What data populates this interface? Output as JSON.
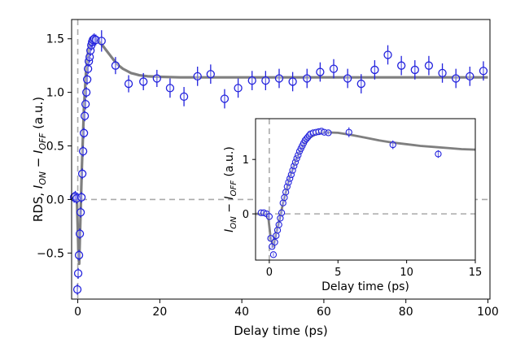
{
  "chart_data": [
    {
      "type": "scatter",
      "title": "",
      "xlabel": "Delay time (ps)",
      "ylabel": "RDS, I_ON − I_OFF (a.u.)",
      "ylabel_parts": {
        "main": "RDS, ",
        "i1": "I",
        "s1": "ON",
        "mid": " − ",
        "i2": "I",
        "s2": "OFF",
        "tail": " (a.u.)"
      },
      "xlim": [
        -1.5,
        100.5
      ],
      "ylim": [
        -0.93,
        1.68
      ],
      "xticks": [
        0,
        20,
        40,
        60,
        80,
        100
      ],
      "yticks": [
        -0.5,
        0.0,
        0.5,
        1.0,
        1.5
      ],
      "xtick_labels": [
        "0",
        "20",
        "40",
        "60",
        "80",
        "100"
      ],
      "ytick_labels": [
        "−0.5",
        "0.0",
        "0.5",
        "1.0",
        "1.5"
      ],
      "grid": false,
      "colors": {
        "points": "#2222dd",
        "fit": "#7f7f7f",
        "guides": "#aaaaaa"
      },
      "reference_lines": {
        "y": 0,
        "x": 0
      },
      "series": [
        {
          "kind": "points-with-errorbars",
          "x": [
            -0.9,
            -0.6,
            -0.3,
            -0.1,
            0.1,
            0.3,
            0.5,
            0.7,
            0.9,
            1.1,
            1.3,
            1.5,
            1.7,
            1.9,
            2.1,
            2.3,
            2.5,
            2.7,
            2.9,
            3.1,
            3.3,
            3.5,
            3.7,
            4.0,
            4.4,
            5.8,
            9.2,
            12.4,
            16,
            19.3,
            22.5,
            25.9,
            29.2,
            32.4,
            35.8,
            39.1,
            42.5,
            45.8,
            49.1,
            52.4,
            55.9,
            59.1,
            62.4,
            65.8,
            69.1,
            72.4,
            75.6,
            78.9,
            82.2,
            85.6,
            88.9,
            92.2,
            95.6,
            98.9
          ],
          "y": [
            0.02,
            0.03,
            0.01,
            -0.84,
            -0.69,
            -0.52,
            -0.32,
            -0.12,
            0.02,
            0.24,
            0.45,
            0.62,
            0.78,
            0.89,
            1.0,
            1.12,
            1.22,
            1.29,
            1.33,
            1.39,
            1.44,
            1.47,
            1.49,
            1.5,
            1.49,
            1.48,
            1.25,
            1.08,
            1.1,
            1.13,
            1.04,
            0.96,
            1.15,
            1.17,
            0.94,
            1.04,
            1.11,
            1.11,
            1.13,
            1.1,
            1.13,
            1.19,
            1.22,
            1.13,
            1.08,
            1.21,
            1.35,
            1.25,
            1.21,
            1.25,
            1.18,
            1.13,
            1.15,
            1.2
          ],
          "err": [
            0.05,
            0.05,
            0.05,
            0.05,
            0.05,
            0.05,
            0.05,
            0.05,
            0.05,
            0.05,
            0.05,
            0.05,
            0.05,
            0.05,
            0.05,
            0.05,
            0.05,
            0.05,
            0.05,
            0.05,
            0.05,
            0.05,
            0.05,
            0.05,
            0.05,
            0.1,
            0.08,
            0.08,
            0.08,
            0.08,
            0.09,
            0.09,
            0.09,
            0.09,
            0.09,
            0.09,
            0.09,
            0.09,
            0.09,
            0.09,
            0.09,
            0.09,
            0.09,
            0.09,
            0.09,
            0.09,
            0.09,
            0.09,
            0.09,
            0.09,
            0.09,
            0.09,
            0.09,
            0.09
          ]
        },
        {
          "kind": "fit-curve",
          "x": [
            -1.5,
            -0.2,
            0.2,
            0.35,
            0.6,
            1,
            1.5,
            2,
            2.5,
            3,
            3.5,
            4,
            5,
            6,
            7,
            8,
            9,
            10,
            11,
            12,
            13,
            14,
            15,
            17,
            20,
            25,
            30,
            40,
            60,
            80,
            100
          ],
          "y": [
            0,
            0,
            -0.55,
            -0.6,
            -0.25,
            0.3,
            0.85,
            1.18,
            1.37,
            1.46,
            1.5,
            1.5,
            1.48,
            1.44,
            1.39,
            1.34,
            1.29,
            1.25,
            1.22,
            1.2,
            1.18,
            1.17,
            1.16,
            1.15,
            1.145,
            1.14,
            1.14,
            1.14,
            1.14,
            1.14,
            1.14
          ]
        }
      ]
    },
    {
      "type": "scatter",
      "title": "",
      "xlabel": "Delay time (ps)",
      "ylabel": "I_ON − I_OFF (a.u.)",
      "ylabel_parts": {
        "i1": "I",
        "s1": "ON",
        "mid": " − ",
        "i2": "I",
        "s2": "OFF",
        "tail": " (a.u.)"
      },
      "xlim": [
        -1,
        15
      ],
      "ylim": [
        -0.85,
        1.75
      ],
      "xticks": [
        0,
        5,
        10,
        15
      ],
      "yticks": [
        0,
        1
      ],
      "xtick_labels": [
        "0",
        "5",
        "10",
        "15"
      ],
      "ytick_labels": [
        "0",
        "1"
      ],
      "grid": false,
      "reference_lines": {
        "y": 0,
        "x": 0
      },
      "series": [
        {
          "kind": "points-with-errorbars",
          "x": [
            -0.6,
            -0.4,
            -0.2,
            0,
            0.1,
            0.2,
            0.3,
            0.4,
            0.5,
            0.6,
            0.7,
            0.8,
            0.9,
            1.0,
            1.1,
            1.2,
            1.3,
            1.4,
            1.5,
            1.6,
            1.7,
            1.8,
            1.9,
            2.0,
            2.1,
            2.2,
            2.3,
            2.4,
            2.5,
            2.6,
            2.7,
            2.8,
            2.9,
            3.0,
            3.2,
            3.4,
            3.6,
            3.8,
            4.0,
            4.3,
            5.8,
            9.0,
            12.3
          ],
          "y": [
            0.02,
            0.02,
            0.0,
            -0.05,
            -0.45,
            -0.6,
            -0.75,
            -0.52,
            -0.4,
            -0.3,
            -0.2,
            -0.08,
            0.02,
            0.2,
            0.3,
            0.4,
            0.5,
            0.58,
            0.65,
            0.72,
            0.8,
            0.88,
            0.95,
            1.02,
            1.08,
            1.15,
            1.2,
            1.25,
            1.3,
            1.35,
            1.38,
            1.41,
            1.44,
            1.47,
            1.49,
            1.5,
            1.51,
            1.52,
            1.5,
            1.49,
            1.5,
            1.27,
            1.1
          ],
          "err": [
            0.03,
            0.03,
            0.03,
            0.03,
            0.03,
            0.03,
            0.03,
            0.03,
            0.03,
            0.03,
            0.03,
            0.03,
            0.03,
            0.03,
            0.03,
            0.03,
            0.03,
            0.03,
            0.03,
            0.03,
            0.03,
            0.03,
            0.03,
            0.03,
            0.03,
            0.03,
            0.03,
            0.03,
            0.03,
            0.03,
            0.03,
            0.03,
            0.03,
            0.03,
            0.03,
            0.03,
            0.03,
            0.03,
            0.03,
            0.03,
            0.09,
            0.08,
            0.07
          ]
        },
        {
          "kind": "fit-curve",
          "x": [
            -1,
            -0.1,
            0.1,
            0.3,
            0.5,
            0.8,
            1,
            1.5,
            2,
            2.5,
            3,
            3.5,
            4,
            5,
            6,
            7,
            8,
            9,
            10,
            11,
            12,
            13,
            14,
            15
          ],
          "y": [
            0,
            0,
            -0.45,
            -0.6,
            -0.35,
            -0.05,
            0.2,
            0.68,
            1.03,
            1.27,
            1.41,
            1.48,
            1.5,
            1.49,
            1.45,
            1.4,
            1.35,
            1.31,
            1.28,
            1.25,
            1.23,
            1.21,
            1.19,
            1.18
          ]
        }
      ]
    }
  ]
}
